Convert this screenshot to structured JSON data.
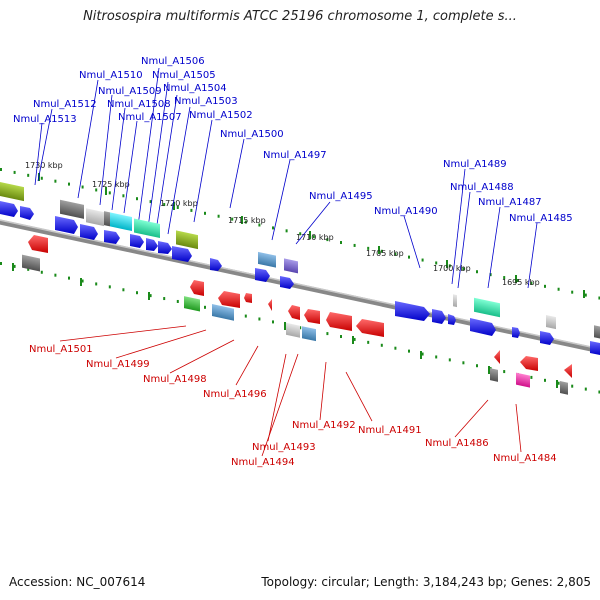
{
  "header": {
    "title": "Nitrosospira multiformis ATCC 25196 chromosome 1, complete s..."
  },
  "footer": {
    "accession": "Accession: NC_007614",
    "stats": "Topology: circular; Length: 3,184,243 bp; Genes: 2,805"
  },
  "map": {
    "ticks": [
      "1730 kbp",
      "1725 kbp",
      "1720 kbp",
      "1715 kbp",
      "1710 kbp",
      "1705 kbp",
      "1700 kbp",
      "1695 kbp"
    ],
    "top_labels": [
      "Nmul_A1506",
      "Nmul_A1510",
      "Nmul_A1505",
      "Nmul_A1504",
      "Nmul_A1509",
      "Nmul_A1503",
      "Nmul_A1512",
      "Nmul_A1508",
      "Nmul_A1507",
      "Nmul_A1502",
      "Nmul_A1513",
      "Nmul_A1500",
      "Nmul_A1497",
      "Nmul_A1489",
      "Nmul_A1488",
      "Nmul_A1495",
      "Nmul_A1487",
      "Nmul_A1490",
      "Nmul_A1485"
    ],
    "bottom_labels": [
      "Nmul_A1501",
      "Nmul_A1499",
      "Nmul_A1498",
      "Nmul_A1496",
      "Nmul_A1492",
      "Nmul_A1491",
      "Nmul_A1493",
      "Nmul_A1494",
      "Nmul_A1486",
      "Nmul_A1484"
    ]
  },
  "colors": {
    "forward": "#0000ee",
    "reverse": "#ee0000",
    "backbone": "#888888",
    "tick": "#1a8a1a"
  }
}
